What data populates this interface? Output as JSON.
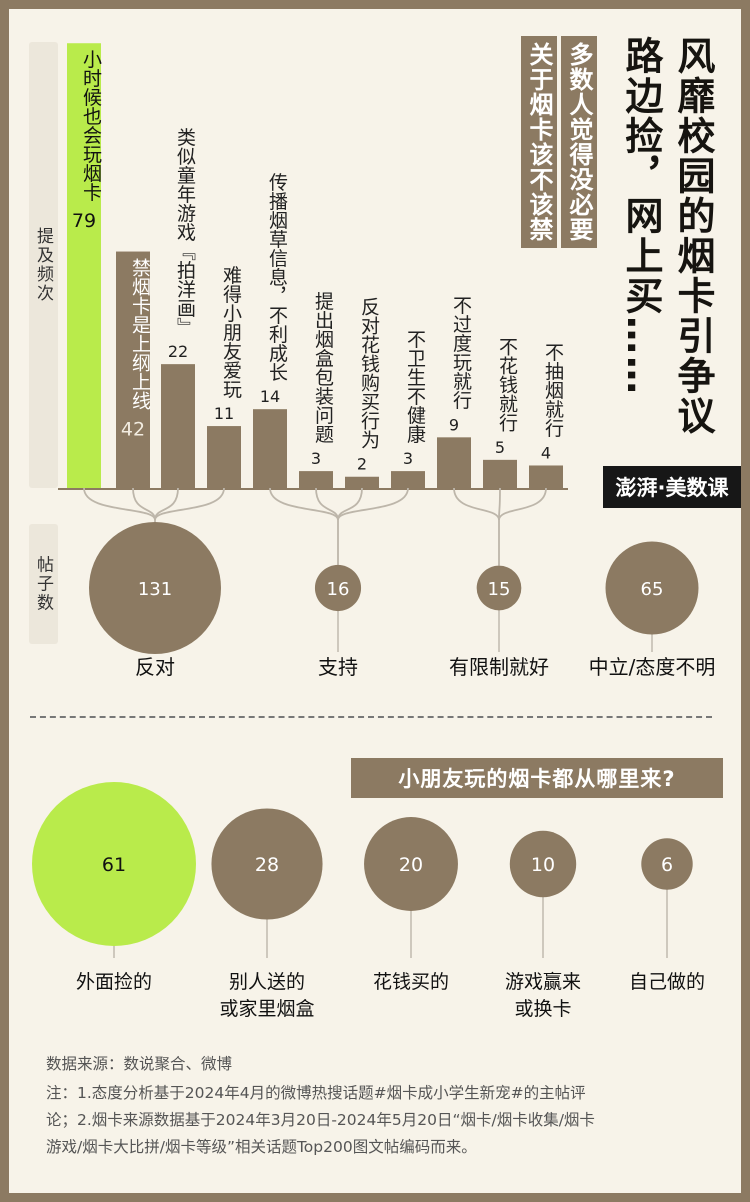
{
  "title_lines": [
    "风靡校园的烟卡引争议",
    "路边捡，网上买……"
  ],
  "subtitle_lines": [
    "多数人觉得没必要",
    "关于烟卡该不该禁"
  ],
  "brand_text": "澎湃·美数课",
  "colors": {
    "brown": "#8c7a62",
    "green": "#b9eb4b",
    "paper": "#f7f3e9",
    "frame": "#8c7a62"
  },
  "chart_data": [
    {
      "type": "bar",
      "ylabel": "提及频次",
      "categories": [
        "小时候也会玩烟卡",
        "禁烟卡是上纲上线",
        "类似童年游戏『拍洋画』",
        "难得小朋友爱玩",
        "传播烟草信息，不利成长",
        "提出烟盒包装问题",
        "反对花钱购买行为",
        "不卫生不健康",
        "不过度玩就行",
        "不花钱就行",
        "不抽烟就行"
      ],
      "values": [
        79,
        42,
        22,
        11,
        14,
        3,
        2,
        3,
        9,
        5,
        4
      ],
      "highlight_index": 0,
      "groups": [
        {
          "label": "反对",
          "bar_indices": [
            0,
            1,
            2,
            3
          ]
        },
        {
          "label": "支持",
          "bar_indices": [
            4,
            5,
            6,
            7
          ]
        },
        {
          "label": "有限制就好",
          "bar_indices": [
            8,
            9,
            10
          ]
        }
      ]
    },
    {
      "type": "bubble",
      "ylabel": "帖子数",
      "categories": [
        "反对",
        "支持",
        "有限制就好",
        "中立/态度不明"
      ],
      "values": [
        131,
        16,
        15,
        65
      ]
    },
    {
      "type": "bubble",
      "title": "小朋友玩的烟卡都从哪里来?",
      "categories": [
        "外面捡的",
        "别人送的\n或家里烟盒",
        "花钱买的",
        "游戏赢来\n或换卡",
        "自己做的"
      ],
      "values": [
        61,
        28,
        20,
        10,
        6
      ],
      "highlight_index": 0
    }
  ],
  "footer": {
    "source": "数据来源：数说聚合、微博",
    "note_lines": [
      "注：1.态度分析基于2024年4月的微博热搜话题#烟卡成小学生新宠#的主帖评",
      "论；2.烟卡来源数据基于2024年3月20日-2024年5月20日“烟卡/烟卡收集/烟卡",
      "游戏/烟卡大比拼/烟卡等级”相关话题Top200图文帖编码而来。"
    ]
  }
}
